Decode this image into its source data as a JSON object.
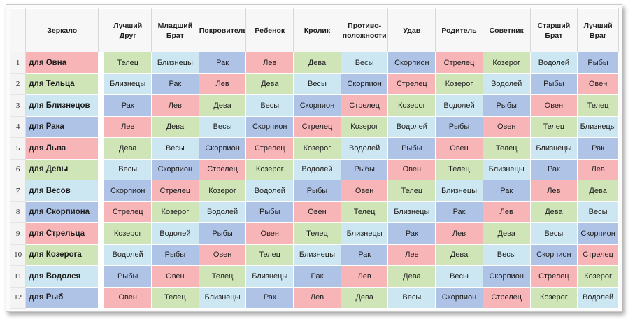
{
  "header": {
    "mirror": "Зеркало",
    "columns": [
      "Лучший Друг",
      "Младший Брат",
      "Покровитель",
      "Ребенок",
      "Кролик",
      "Противо-положности",
      "Удав",
      "Родитель",
      "Советник",
      "Старший Брат",
      "Лучший Враг"
    ]
  },
  "element_colors": {
    "fire": "#f7b5b7",
    "earth": "#cfe5b8",
    "air": "#cde7f2",
    "water": "#aec3e6"
  },
  "rows": [
    {
      "num": "1",
      "sign": "для Овна",
      "cells": [
        "Телец",
        "Близнецы",
        "Рак",
        "Лев",
        "Дева",
        "Весы",
        "Скорпион",
        "Стрелец",
        "Козерог",
        "Водолей",
        "Рыбы"
      ]
    },
    {
      "num": "2",
      "sign": "для Тельца",
      "cells": [
        "Близнецы",
        "Рак",
        "Лев",
        "Дева",
        "Весы",
        "Скорпион",
        "Стрелец",
        "Козерог",
        "Водолей",
        "Рыбы",
        "Овен"
      ]
    },
    {
      "num": "3",
      "sign": "для Близнецов",
      "cells": [
        "Рак",
        "Лев",
        "Дева",
        "Весы",
        "Скорпион",
        "Стрелец",
        "Козерог",
        "Водолей",
        "Рыбы",
        "Овен",
        "Телец"
      ]
    },
    {
      "num": "4",
      "sign": "для Рака",
      "cells": [
        "Лев",
        "Дева",
        "Весы",
        "Скорпион",
        "Стрелец",
        "Козерог",
        "Водолей",
        "Рыбы",
        "Овен",
        "Телец",
        "Близнецы"
      ]
    },
    {
      "num": "5",
      "sign": "для Льва",
      "cells": [
        "Дева",
        "Весы",
        "Скорпион",
        "Стрелец",
        "Козерог",
        "Водолей",
        "Рыбы",
        "Овен",
        "Телец",
        "Близнецы",
        "Рак"
      ]
    },
    {
      "num": "6",
      "sign": "для Девы",
      "cells": [
        "Весы",
        "Скорпион",
        "Стрелец",
        "Козерог",
        "Водолей",
        "Рыбы",
        "Овен",
        "Телец",
        "Близнецы",
        "Рак",
        "Лев"
      ]
    },
    {
      "num": "7",
      "sign": "для Весов",
      "cells": [
        "Скорпион",
        "Стрелец",
        "Козерог",
        "Водолей",
        "Рыбы",
        "Овен",
        "Телец",
        "Близнецы",
        "Рак",
        "Лев",
        "Дева"
      ]
    },
    {
      "num": "8",
      "sign": "для Скорпиона",
      "cells": [
        "Стрелец",
        "Козерог",
        "Водолей",
        "Рыбы",
        "Овен",
        "Телец",
        "Близнецы",
        "Рак",
        "Лев",
        "Дева",
        "Весы"
      ]
    },
    {
      "num": "9",
      "sign": "для Стрельца",
      "cells": [
        "Козерог",
        "Водолей",
        "Рыбы",
        "Овен",
        "Телец",
        "Близнецы",
        "Рак",
        "Лев",
        "Дева",
        "Весы",
        "Скорпион"
      ]
    },
    {
      "num": "10",
      "sign": "для Козерога",
      "cells": [
        "Водолей",
        "Рыбы",
        "Овен",
        "Телец",
        "Близнецы",
        "Рак",
        "Лев",
        "Дева",
        "Весы",
        "Скорпион",
        "Стрелец"
      ]
    },
    {
      "num": "11",
      "sign": "для Водолея",
      "cells": [
        "Рыбы",
        "Овен",
        "Телец",
        "Близнецы",
        "Рак",
        "Лев",
        "Дева",
        "Весы",
        "Скорпион",
        "Стрелец",
        "Козерог"
      ]
    },
    {
      "num": "12",
      "sign": "для Рыб",
      "cells": [
        "Овен",
        "Телец",
        "Близнецы",
        "Рак",
        "Лев",
        "Дева",
        "Весы",
        "Скорпион",
        "Стрелец",
        "Козерог",
        "Водолей"
      ]
    }
  ]
}
